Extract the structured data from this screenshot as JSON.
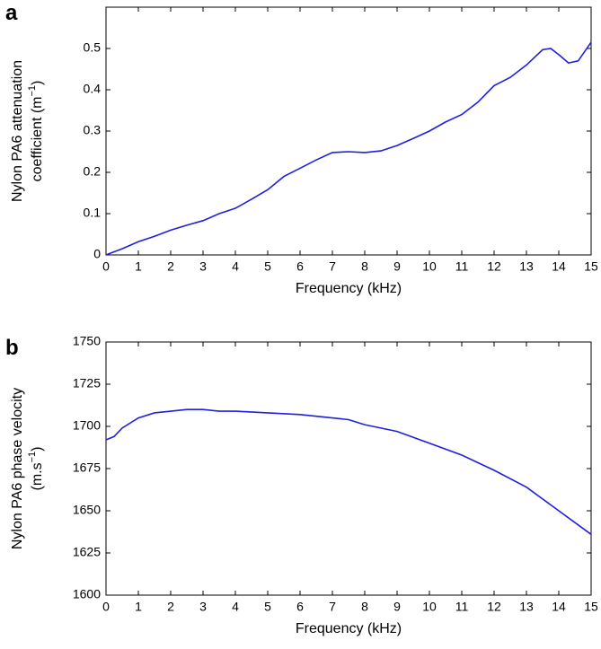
{
  "chart_data": [
    {
      "type": "line",
      "panel_label": "a",
      "xlabel": "Frequency (kHz)",
      "ylabel": [
        "Nylon PA6 attenuation",
        "coefficient (m",
        "−1",
        ")"
      ],
      "x": [
        0,
        0.5,
        1,
        1.5,
        2,
        2.5,
        3,
        3.5,
        4,
        4.5,
        5,
        5.5,
        6,
        6.5,
        7,
        7.5,
        8,
        8.5,
        9,
        9.5,
        10,
        10.5,
        11,
        11.5,
        12,
        12.5,
        13,
        13.5,
        13.75,
        14,
        14.3,
        14.6,
        15
      ],
      "series": [
        {
          "color": "#1f1fe0",
          "values": [
            0,
            0.015,
            0.032,
            0.045,
            0.06,
            0.072,
            0.083,
            0.1,
            0.113,
            0.135,
            0.158,
            0.19,
            0.21,
            0.23,
            0.248,
            0.25,
            0.248,
            0.252,
            0.265,
            0.282,
            0.3,
            0.322,
            0.34,
            0.37,
            0.41,
            0.43,
            0.46,
            0.497,
            0.5,
            0.485,
            0.465,
            0.47,
            0.515
          ]
        }
      ],
      "xlim": [
        0,
        15
      ],
      "xticks": [
        0,
        1,
        2,
        3,
        4,
        5,
        6,
        7,
        8,
        9,
        10,
        11,
        12,
        13,
        14,
        15
      ],
      "ylim": [
        0,
        0.6
      ],
      "yticks": [
        0,
        0.1,
        0.2,
        0.3,
        0.4,
        0.5
      ]
    },
    {
      "type": "line",
      "panel_label": "b",
      "xlabel": "Frequency (kHz)",
      "ylabel": [
        "Nylon PA6 phase velocity",
        "(m.s",
        "−1",
        ")"
      ],
      "x": [
        0,
        0.25,
        0.5,
        1,
        1.5,
        2,
        2.5,
        3,
        3.5,
        4,
        5,
        6,
        7,
        7.5,
        8,
        9,
        10,
        11,
        12,
        13,
        14,
        15
      ],
      "series": [
        {
          "color": "#1f1fe0",
          "values": [
            1692,
            1694,
            1699,
            1705,
            1708,
            1709,
            1710,
            1710,
            1709,
            1709,
            1708,
            1707,
            1705,
            1704,
            1701,
            1697,
            1690,
            1683,
            1674,
            1664,
            1650,
            1636
          ]
        }
      ],
      "xlim": [
        0,
        15
      ],
      "xticks": [
        0,
        1,
        2,
        3,
        4,
        5,
        6,
        7,
        8,
        9,
        10,
        11,
        12,
        13,
        14,
        15
      ],
      "ylim": [
        1600,
        1750
      ],
      "yticks": [
        1600,
        1625,
        1650,
        1675,
        1700,
        1725,
        1750
      ]
    }
  ]
}
